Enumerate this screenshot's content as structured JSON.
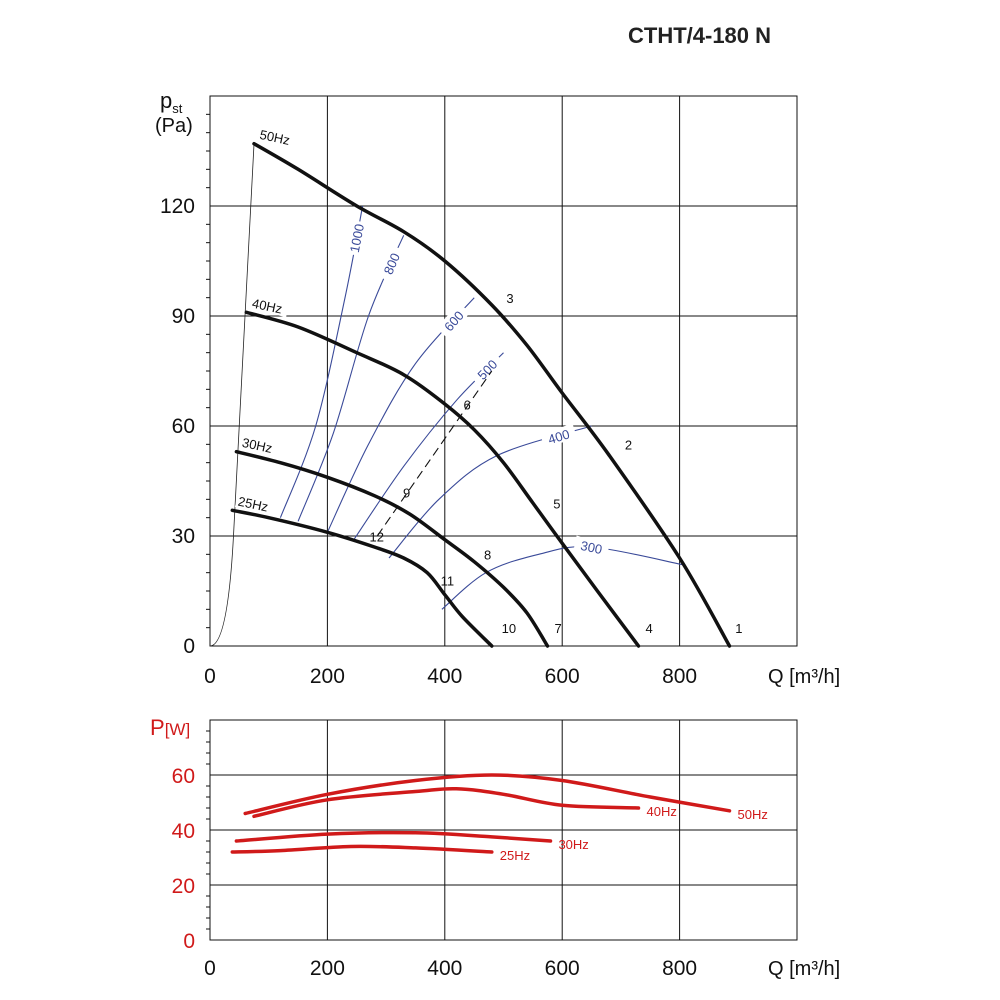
{
  "title": "CTHT/4-180 N",
  "colors": {
    "curve": "#111111",
    "rpm": "#3a4a99",
    "power": "#d01a1a",
    "grid": "#111111"
  },
  "chart_data": [
    {
      "type": "line",
      "ylabel_main": "p",
      "ylabel_sub": "st",
      "ylabel_unit": "(Pa)",
      "xlabel": "Q [m³/h]",
      "xlim": [
        0,
        1000
      ],
      "ylim": [
        0,
        150
      ],
      "xticks": [
        "0",
        "200",
        "400",
        "600",
        "800"
      ],
      "yticks": [
        "0",
        "30",
        "60",
        "90",
        "120"
      ],
      "grid": true,
      "series": [
        {
          "name": "50Hz",
          "points": [
            [
              75,
              137
            ],
            [
              150,
              130
            ],
            [
              250,
              120
            ],
            [
              330,
              113
            ],
            [
              400,
              105
            ],
            [
              480,
              93
            ],
            [
              540,
              82
            ],
            [
              600,
              69
            ],
            [
              680,
              52
            ],
            [
              800,
              24
            ],
            [
              885,
              0
            ]
          ]
        },
        {
          "name": "40Hz",
          "points": [
            [
              62,
              91
            ],
            [
              150,
              87
            ],
            [
              250,
              80
            ],
            [
              330,
              74
            ],
            [
              400,
              66
            ],
            [
              450,
              59
            ],
            [
              500,
              50
            ],
            [
              550,
              39
            ],
            [
              600,
              28
            ],
            [
              660,
              15
            ],
            [
              730,
              0
            ]
          ]
        },
        {
          "name": "30Hz",
          "points": [
            [
              45,
              53
            ],
            [
              120,
              50
            ],
            [
              200,
              46
            ],
            [
              280,
              41
            ],
            [
              340,
              36
            ],
            [
              400,
              29
            ],
            [
              450,
              23
            ],
            [
              500,
              16
            ],
            [
              540,
              9
            ],
            [
              575,
              0
            ]
          ]
        },
        {
          "name": "25Hz",
          "points": [
            [
              38,
              37
            ],
            [
              100,
              35
            ],
            [
              200,
              31
            ],
            [
              280,
              27
            ],
            [
              330,
              24
            ],
            [
              370,
              20
            ],
            [
              400,
              14
            ],
            [
              430,
              8
            ],
            [
              480,
              0
            ]
          ]
        }
      ],
      "rpm_lines": [
        {
          "label": "1000",
          "points": [
            [
              120,
              35
            ],
            [
              180,
              60
            ],
            [
              230,
              95
            ],
            [
              260,
              120
            ]
          ]
        },
        {
          "label": "800",
          "points": [
            [
              150,
              34
            ],
            [
              210,
              58
            ],
            [
              270,
              90
            ],
            [
              330,
              112
            ]
          ]
        },
        {
          "label": "600",
          "points": [
            [
              200,
              31
            ],
            [
              270,
              55
            ],
            [
              350,
              77
            ],
            [
              450,
              95
            ]
          ]
        },
        {
          "label": "500",
          "points": [
            [
              245,
              29
            ],
            [
              330,
              49
            ],
            [
              420,
              67
            ],
            [
              500,
              80
            ]
          ]
        },
        {
          "label": "400",
          "points": [
            [
              305,
              24
            ],
            [
              390,
              40
            ],
            [
              490,
              52
            ],
            [
              650,
              60
            ]
          ]
        },
        {
          "label": "300",
          "points": [
            [
              395,
              10
            ],
            [
              470,
              20
            ],
            [
              560,
              25
            ],
            [
              650,
              27
            ],
            [
              810,
              22
            ]
          ]
        }
      ],
      "efficiency_line": {
        "points": [
          [
            285,
            30
          ],
          [
            480,
            75
          ]
        ]
      },
      "system_curve": {
        "points": [
          [
            0,
            0
          ],
          [
            40,
            30
          ],
          [
            75,
            137
          ]
        ]
      },
      "point_labels": [
        {
          "label": "1",
          "q": 888,
          "p": 3
        },
        {
          "label": "2",
          "q": 700,
          "p": 53
        },
        {
          "label": "3",
          "q": 498,
          "p": 93
        },
        {
          "label": "4",
          "q": 735,
          "p": 3
        },
        {
          "label": "5",
          "q": 578,
          "p": 37
        },
        {
          "label": "6",
          "q": 425,
          "p": 64
        },
        {
          "label": "7",
          "q": 580,
          "p": 3
        },
        {
          "label": "8",
          "q": 460,
          "p": 23
        },
        {
          "label": "9",
          "q": 322,
          "p": 40
        },
        {
          "label": "10",
          "q": 490,
          "p": 3
        },
        {
          "label": "11",
          "q": 386,
          "p": 16
        },
        {
          "label": "12",
          "q": 265,
          "p": 28
        }
      ]
    },
    {
      "type": "line",
      "ylabel": "P",
      "ylabel_unit": "[W]",
      "xlabel": "Q [m³/h]",
      "xlim": [
        0,
        1000
      ],
      "ylim": [
        0,
        80
      ],
      "xticks": [
        "0",
        "200",
        "400",
        "600",
        "800"
      ],
      "yticks": [
        "0",
        "20",
        "40",
        "60"
      ],
      "grid": true,
      "series": [
        {
          "name": "50Hz",
          "points": [
            [
              60,
              46
            ],
            [
              200,
              53
            ],
            [
              350,
              58
            ],
            [
              480,
              60
            ],
            [
              600,
              58
            ],
            [
              750,
              52
            ],
            [
              885,
              47
            ]
          ]
        },
        {
          "name": "40Hz",
          "points": [
            [
              75,
              45
            ],
            [
              200,
              51
            ],
            [
              350,
              54
            ],
            [
              420,
              55
            ],
            [
              500,
              53
            ],
            [
              600,
              49
            ],
            [
              730,
              48
            ]
          ]
        },
        {
          "name": "30Hz",
          "points": [
            [
              45,
              36
            ],
            [
              200,
              38.5
            ],
            [
              350,
              39
            ],
            [
              480,
              37.5
            ],
            [
              580,
              36
            ]
          ]
        },
        {
          "name": "25Hz",
          "points": [
            [
              38,
              32
            ],
            [
              120,
              32.5
            ],
            [
              240,
              34
            ],
            [
              350,
              33.5
            ],
            [
              480,
              32
            ]
          ]
        }
      ]
    }
  ]
}
